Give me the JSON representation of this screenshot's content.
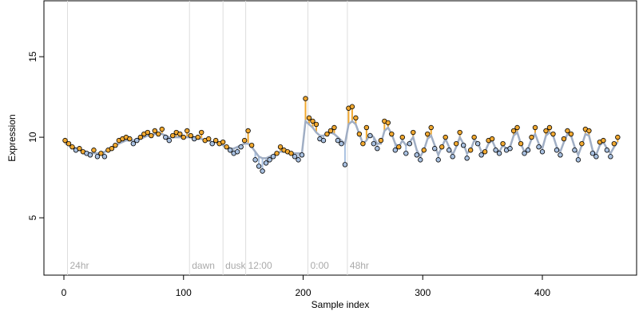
{
  "chart_data": {
    "type": "scatter",
    "x_label": "Sample index",
    "y_label": "Expression",
    "xlim": [
      -16.7,
      478.8
    ],
    "ylim": [
      1.44,
      18.47
    ],
    "xticks": [
      0,
      100,
      200,
      300,
      400
    ],
    "yticks": [
      5,
      10,
      15
    ],
    "above_color": "#f0a830",
    "below_color": "#a8c0e0",
    "events": [
      {
        "x": 3,
        "label": "24hr"
      },
      {
        "x": 105,
        "label": "dawn"
      },
      {
        "x": 133,
        "label": "dusk"
      },
      {
        "x": 152,
        "label": "12:00"
      },
      {
        "x": 204,
        "label": "0:00"
      },
      {
        "x": 237,
        "label": "48hr"
      }
    ],
    "event_color": "#dddddd",
    "x": [
      1,
      4,
      7,
      10,
      13,
      16,
      19,
      22,
      25,
      28,
      31,
      34,
      37,
      40,
      43,
      46,
      49,
      52,
      55,
      58,
      61,
      64,
      67,
      70,
      73,
      76,
      79,
      82,
      85,
      88,
      91,
      94,
      97,
      100,
      103,
      106,
      109,
      112,
      115,
      118,
      121,
      124,
      127,
      130,
      133,
      136,
      139,
      142,
      145,
      148,
      151,
      154,
      157,
      160,
      163,
      166,
      169,
      172,
      175,
      178,
      181,
      184,
      187,
      190,
      193,
      196,
      199,
      202,
      205,
      208,
      211,
      214,
      217,
      220,
      223,
      226,
      229,
      232,
      235,
      238,
      241,
      244,
      247,
      250,
      253,
      256,
      259,
      262,
      265,
      268,
      271,
      274,
      277,
      280,
      283,
      286,
      289,
      292,
      295,
      298,
      301,
      304,
      307,
      310,
      313,
      316,
      319,
      322,
      325,
      328,
      331,
      334,
      337,
      340,
      343,
      346,
      349,
      352,
      355,
      358,
      361,
      364,
      367,
      370,
      373,
      376,
      379,
      382,
      385,
      388,
      391,
      394,
      397,
      400,
      403,
      406,
      409,
      412,
      415,
      418,
      421,
      424,
      427,
      430,
      433,
      436,
      439,
      442,
      445,
      448,
      451,
      454,
      457,
      460,
      463
    ],
    "series": [
      {
        "color": "#000000",
        "values": [
          9.8,
          9.6,
          9.4,
          9.2,
          9.3,
          9.1,
          9.0,
          8.9,
          9.2,
          8.8,
          9.0,
          8.8,
          9.2,
          9.3,
          9.5,
          9.8,
          9.9,
          10.0,
          9.9,
          9.6,
          9.8,
          10.0,
          10.2,
          10.3,
          10.1,
          10.4,
          10.2,
          10.5,
          10.0,
          9.8,
          10.1,
          10.3,
          10.2,
          10.0,
          10.4,
          10.1,
          9.9,
          10.0,
          10.3,
          9.8,
          9.9,
          9.6,
          9.8,
          9.6,
          9.7,
          9.4,
          9.2,
          9.0,
          9.1,
          9.4,
          9.8,
          10.4,
          9.5,
          8.6,
          8.2,
          7.9,
          8.4,
          8.6,
          8.8,
          9.0,
          9.4,
          9.2,
          9.1,
          9.0,
          8.8,
          8.6,
          8.9,
          12.4,
          11.2,
          11.0,
          10.8,
          9.9,
          9.8,
          10.2,
          10.4,
          10.6,
          9.8,
          9.6,
          8.3,
          11.8,
          11.9,
          11.2,
          10.2,
          9.6,
          10.6,
          10.1,
          9.6,
          9.3,
          9.8,
          11.0,
          10.9,
          10.2,
          9.2,
          9.4,
          10.0,
          9.0,
          9.6,
          10.3,
          8.9,
          8.6,
          9.2,
          10.2,
          10.6,
          9.3,
          8.6,
          9.4,
          10.0,
          9.2,
          8.8,
          9.6,
          10.3,
          9.5,
          8.7,
          9.2,
          10.0,
          9.6,
          8.9,
          9.1,
          9.8,
          9.9,
          9.2,
          9.0,
          9.6,
          9.2,
          9.3,
          10.4,
          10.6,
          9.6,
          9.0,
          9.2,
          10.0,
          10.6,
          9.4,
          9.1,
          10.4,
          10.6,
          10.2,
          9.2,
          8.9,
          9.9,
          10.4,
          10.2,
          9.2,
          8.6,
          9.6,
          10.5,
          10.4,
          9.0,
          8.8,
          9.7,
          9.8,
          9.2,
          8.8,
          9.6,
          10.0
        ]
      },
      {
        "color": "#a0aec4",
        "values": [
          9.6,
          9.5,
          9.4,
          9.3,
          9.2,
          9.1,
          9.1,
          9.0,
          9.0,
          9.0,
          9.0,
          9.1,
          9.2,
          9.3,
          9.5,
          9.6,
          9.7,
          9.8,
          9.8,
          9.8,
          9.9,
          9.9,
          10.0,
          10.1,
          10.1,
          10.2,
          10.2,
          10.2,
          10.1,
          10.0,
          10.0,
          10.0,
          10.0,
          10.0,
          10.0,
          10.0,
          10.0,
          9.9,
          9.9,
          9.8,
          9.8,
          9.7,
          9.7,
          9.6,
          9.5,
          9.4,
          9.3,
          9.3,
          9.4,
          9.5,
          9.6,
          9.6,
          9.4,
          9.1,
          8.8,
          8.7,
          8.7,
          8.8,
          8.9,
          9.0,
          9.1,
          9.1,
          9.1,
          9.0,
          9.0,
          9.0,
          9.0,
          11.0,
          10.8,
          10.6,
          10.3,
          10.1,
          10.1,
          10.2,
          10.3,
          10.2,
          10.0,
          9.8,
          9.6,
          10.8,
          11.0,
          10.8,
          10.2,
          9.6,
          9.8,
          10.2,
          10.0,
          9.6,
          9.6,
          10.4,
          10.6,
          10.2,
          9.6,
          9.4,
          9.8,
          9.5,
          9.7,
          10.0,
          9.2,
          8.8,
          9.2,
          9.9,
          10.1,
          9.5,
          8.9,
          9.4,
          9.9,
          9.4,
          8.9,
          9.4,
          10.0,
          9.6,
          9.0,
          9.2,
          9.8,
          9.7,
          9.1,
          9.1,
          9.6,
          9.8,
          9.3,
          9.1,
          9.5,
          9.3,
          9.4,
          10.1,
          10.3,
          9.6,
          9.1,
          9.3,
          9.9,
          10.2,
          9.6,
          9.3,
          10.1,
          10.3,
          10.1,
          9.4,
          9.1,
          9.7,
          10.2,
          10.1,
          9.4,
          8.9,
          9.5,
          10.2,
          10.1,
          9.2,
          8.9,
          9.5,
          9.7,
          9.3,
          9.0,
          9.4,
          9.7
        ]
      }
    ]
  }
}
